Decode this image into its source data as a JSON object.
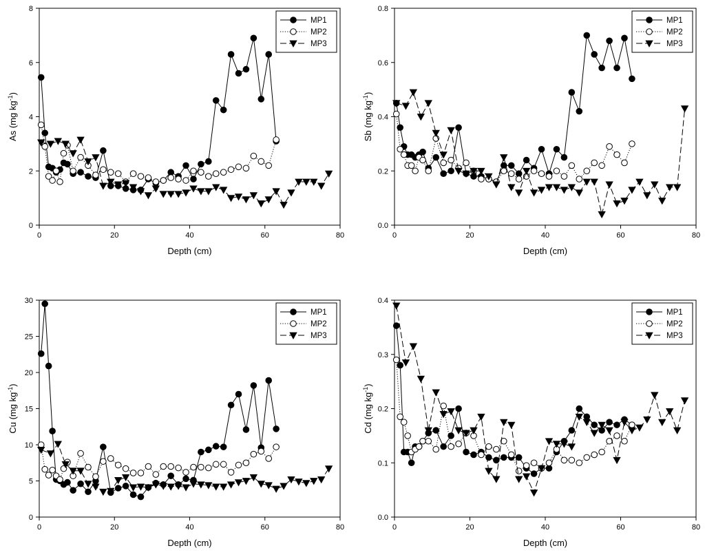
{
  "figure": {
    "background": "#ffffff",
    "series_styles": {
      "MP1": {
        "marker": "filled-circle",
        "line": "solid",
        "color": "#000000"
      },
      "MP2": {
        "marker": "open-circle",
        "line": "dotted",
        "color": "#000000"
      },
      "MP3": {
        "marker": "filled-triangle-down",
        "line": "dashed",
        "color": "#000000"
      }
    }
  },
  "chart_data": [
    {
      "type": "line",
      "id": "as",
      "xlabel": "Depth (cm)",
      "ylabel_main": "As (mg kg",
      "ylabel_sup": "-1",
      "ylabel_close": ")",
      "xlim": [
        0,
        80
      ],
      "ylim": [
        0,
        8
      ],
      "xticks": [
        0,
        20,
        40,
        60,
        80
      ],
      "yticks": [
        0,
        2,
        4,
        6,
        8
      ],
      "legend_position": "top-right",
      "series": [
        {
          "name": "MP1",
          "x": [
            0.5,
            1.5,
            2.5,
            3.5,
            4.5,
            5.5,
            6.5,
            7.5,
            9,
            11,
            13,
            15,
            17,
            19,
            21,
            23,
            25,
            27,
            29,
            31,
            33,
            35,
            37,
            39,
            41,
            43,
            45,
            47,
            49,
            51,
            53,
            55,
            57,
            59,
            61,
            63
          ],
          "y": [
            5.45,
            3.4,
            2.15,
            2.1,
            1.95,
            2.05,
            2.3,
            2.25,
            1.9,
            1.95,
            1.8,
            1.75,
            2.75,
            1.45,
            1.45,
            1.35,
            1.3,
            1.3,
            1.7,
            1.55,
            1.65,
            1.95,
            1.8,
            2.2,
            1.7,
            2.25,
            2.35,
            4.6,
            4.25,
            6.3,
            5.6,
            5.75,
            6.9,
            4.65,
            6.3,
            3.1
          ]
        },
        {
          "name": "MP2",
          "x": [
            0.5,
            1.5,
            2.5,
            3.5,
            4.5,
            5.5,
            6.5,
            7.5,
            9,
            11,
            13,
            15,
            17,
            19,
            21,
            23,
            25,
            27,
            29,
            31,
            33,
            35,
            37,
            39,
            41,
            43,
            45,
            47,
            49,
            51,
            53,
            55,
            57,
            59,
            61,
            63
          ],
          "y": [
            3.7,
            2.9,
            1.8,
            1.65,
            2.0,
            1.6,
            2.65,
            2.95,
            2.0,
            2.5,
            2.2,
            1.85,
            2.05,
            1.95,
            1.9,
            1.6,
            1.9,
            1.8,
            1.75,
            1.6,
            1.65,
            1.75,
            1.7,
            1.65,
            2.0,
            1.95,
            1.8,
            1.9,
            1.95,
            2.05,
            2.15,
            2.1,
            2.55,
            2.35,
            2.2,
            3.15
          ]
        },
        {
          "name": "MP3",
          "x": [
            0.5,
            3,
            5,
            7,
            9,
            11,
            13,
            15,
            17,
            19,
            21,
            23,
            25,
            27,
            29,
            31,
            33,
            35,
            37,
            39,
            41,
            43,
            45,
            47,
            49,
            51,
            53,
            55,
            57,
            59,
            61,
            63,
            65,
            67,
            69,
            71,
            73,
            75,
            77
          ],
          "y": [
            3.05,
            3.0,
            3.1,
            3.0,
            2.65,
            3.15,
            2.35,
            2.5,
            1.45,
            1.6,
            1.5,
            1.55,
            1.4,
            1.25,
            1.1,
            1.35,
            1.15,
            1.15,
            1.15,
            1.2,
            1.35,
            1.25,
            1.25,
            1.4,
            1.3,
            1.0,
            1.05,
            0.95,
            1.1,
            0.8,
            0.95,
            1.25,
            0.75,
            1.2,
            1.6,
            1.6,
            1.6,
            1.45,
            1.9
          ]
        }
      ]
    },
    {
      "type": "line",
      "id": "sb",
      "xlabel": "Depth (cm)",
      "ylabel_main": "Sb (mg kg",
      "ylabel_sup": "-1",
      "ylabel_close": ")",
      "xlim": [
        0,
        80
      ],
      "ylim": [
        0,
        0.8
      ],
      "xticks": [
        0,
        20,
        40,
        60,
        80
      ],
      "yticks": [
        0.0,
        0.2,
        0.4,
        0.6,
        0.8
      ],
      "ytick_decimals": 1,
      "legend_position": "top-right",
      "series": [
        {
          "name": "MP1",
          "x": [
            0.5,
            1.5,
            2.5,
            3.5,
            4.5,
            5.5,
            6.5,
            7.5,
            9,
            11,
            13,
            15,
            17,
            19,
            21,
            23,
            25,
            27,
            29,
            31,
            33,
            35,
            37,
            39,
            41,
            43,
            45,
            47,
            49,
            51,
            53,
            55,
            57,
            59,
            61,
            63
          ],
          "y": [
            0.45,
            0.36,
            0.29,
            0.26,
            0.26,
            0.25,
            0.26,
            0.27,
            0.21,
            0.25,
            0.19,
            0.2,
            0.36,
            0.19,
            0.18,
            0.18,
            0.17,
            0.16,
            0.22,
            0.22,
            0.19,
            0.24,
            0.21,
            0.28,
            0.19,
            0.28,
            0.25,
            0.49,
            0.42,
            0.7,
            0.63,
            0.58,
            0.68,
            0.58,
            0.69,
            0.54
          ]
        },
        {
          "name": "MP2",
          "x": [
            0.5,
            1.5,
            2.5,
            3.5,
            4.5,
            5.5,
            6.5,
            7.5,
            9,
            11,
            13,
            15,
            17,
            19,
            21,
            23,
            25,
            27,
            29,
            31,
            33,
            35,
            37,
            39,
            41,
            43,
            45,
            47,
            49,
            51,
            53,
            55,
            57,
            59,
            61,
            63
          ],
          "y": [
            0.41,
            0.28,
            0.26,
            0.22,
            0.22,
            0.2,
            0.25,
            0.24,
            0.2,
            0.32,
            0.23,
            0.24,
            0.21,
            0.23,
            0.2,
            0.17,
            0.17,
            0.16,
            0.2,
            0.19,
            0.17,
            0.18,
            0.2,
            0.19,
            0.18,
            0.2,
            0.18,
            0.22,
            0.17,
            0.2,
            0.23,
            0.22,
            0.29,
            0.26,
            0.23,
            0.3
          ]
        },
        {
          "name": "MP3",
          "x": [
            0.5,
            3,
            5,
            7,
            9,
            11,
            13,
            15,
            17,
            19,
            21,
            23,
            25,
            27,
            29,
            31,
            33,
            35,
            37,
            39,
            41,
            43,
            45,
            47,
            49,
            51,
            53,
            55,
            57,
            59,
            61,
            63,
            65,
            67,
            69,
            71,
            73,
            75,
            77
          ],
          "y": [
            0.45,
            0.44,
            0.49,
            0.4,
            0.45,
            0.34,
            0.26,
            0.35,
            0.2,
            0.19,
            0.2,
            0.2,
            0.18,
            0.15,
            0.25,
            0.14,
            0.12,
            0.2,
            0.12,
            0.13,
            0.14,
            0.14,
            0.13,
            0.14,
            0.12,
            0.16,
            0.16,
            0.04,
            0.15,
            0.08,
            0.09,
            0.13,
            0.16,
            0.11,
            0.15,
            0.09,
            0.14,
            0.14,
            0.43
          ]
        }
      ]
    },
    {
      "type": "line",
      "id": "cu",
      "xlabel": "Depth (cm)",
      "ylabel_main": "Cu (mg kg",
      "ylabel_sup": "-1",
      "ylabel_close": ")",
      "xlim": [
        0,
        80
      ],
      "ylim": [
        0,
        30
      ],
      "xticks": [
        0,
        20,
        40,
        60,
        80
      ],
      "yticks": [
        0,
        5,
        10,
        15,
        20,
        25,
        30
      ],
      "legend_position": "top-right",
      "series": [
        {
          "name": "MP1",
          "x": [
            0.5,
            1.5,
            2.5,
            3.5,
            4.5,
            5.5,
            6.5,
            7.5,
            9,
            11,
            13,
            15,
            17,
            19,
            21,
            23,
            25,
            27,
            29,
            31,
            33,
            35,
            37,
            39,
            41,
            43,
            45,
            47,
            49,
            51,
            53,
            55,
            57,
            59,
            61,
            63
          ],
          "y": [
            22.6,
            29.5,
            20.9,
            11.9,
            5.2,
            5.0,
            4.5,
            4.8,
            3.7,
            4.6,
            3.5,
            5.0,
            9.7,
            3.4,
            4.0,
            4.3,
            3.1,
            2.8,
            4.1,
            4.7,
            4.5,
            5.7,
            4.5,
            5.3,
            5.1,
            9.0,
            9.3,
            9.8,
            9.7,
            15.5,
            17.0,
            12.1,
            18.2,
            9.6,
            18.9,
            12.2
          ]
        },
        {
          "name": "MP2",
          "x": [
            0.5,
            1.5,
            2.5,
            3.5,
            4.5,
            5.5,
            6.5,
            7.5,
            9,
            11,
            13,
            15,
            17,
            19,
            21,
            23,
            25,
            27,
            29,
            31,
            33,
            35,
            37,
            39,
            41,
            43,
            45,
            47,
            49,
            51,
            53,
            55,
            57,
            59,
            61,
            63
          ],
          "y": [
            10.0,
            6.6,
            5.8,
            6.5,
            5.7,
            5.2,
            6.7,
            7.6,
            5.7,
            8.8,
            6.9,
            5.6,
            7.7,
            8.1,
            7.2,
            6.7,
            6.1,
            6.1,
            7.0,
            5.9,
            7.0,
            7.0,
            6.8,
            6.2,
            6.9,
            6.9,
            6.8,
            7.3,
            7.3,
            6.2,
            7.2,
            7.5,
            8.7,
            9.1,
            8.1,
            9.7
          ]
        },
        {
          "name": "MP3",
          "x": [
            0.5,
            3,
            5,
            7,
            9,
            11,
            13,
            15,
            17,
            19,
            21,
            23,
            25,
            27,
            29,
            31,
            33,
            35,
            37,
            39,
            41,
            43,
            45,
            47,
            49,
            51,
            53,
            55,
            57,
            59,
            61,
            63,
            65,
            67,
            69,
            71,
            73,
            75,
            77
          ],
          "y": [
            9.3,
            8.8,
            10.1,
            7.3,
            6.4,
            6.4,
            4.6,
            4.2,
            3.5,
            3.6,
            5.1,
            5.5,
            4.1,
            4.2,
            4.1,
            4.5,
            4.3,
            4.2,
            4.3,
            4.1,
            4.6,
            4.5,
            4.4,
            4.2,
            4.2,
            4.5,
            4.8,
            5.0,
            5.5,
            4.6,
            4.4,
            3.9,
            4.3,
            5.2,
            4.9,
            4.7,
            5.0,
            5.2,
            6.7
          ]
        }
      ]
    },
    {
      "type": "line",
      "id": "cd",
      "xlabel": "Depth (cm)",
      "ylabel_main": "Cd (mg kg",
      "ylabel_sup": "-1",
      "ylabel_close": ")",
      "xlim": [
        0,
        80
      ],
      "ylim": [
        0,
        0.4
      ],
      "xticks": [
        0,
        20,
        40,
        60,
        80
      ],
      "yticks": [
        0.0,
        0.1,
        0.2,
        0.3,
        0.4
      ],
      "ytick_decimals": 1,
      "legend_position": "top-right",
      "series": [
        {
          "name": "MP1",
          "x": [
            0.5,
            1.5,
            2.5,
            3.5,
            4.5,
            5.5,
            6.5,
            7.5,
            9,
            11,
            13,
            15,
            17,
            19,
            21,
            23,
            25,
            27,
            29,
            31,
            33,
            35,
            37,
            39,
            41,
            43,
            45,
            47,
            49,
            51,
            53,
            55,
            57,
            59,
            61,
            63
          ],
          "y": [
            0.353,
            0.28,
            0.12,
            0.12,
            0.1,
            0.13,
            0.13,
            0.14,
            0.155,
            0.16,
            0.13,
            0.15,
            0.2,
            0.12,
            0.115,
            0.12,
            0.11,
            0.105,
            0.11,
            0.11,
            0.11,
            0.09,
            0.08,
            0.09,
            0.09,
            0.12,
            0.14,
            0.16,
            0.2,
            0.185,
            0.17,
            0.16,
            0.175,
            0.17,
            0.18,
            0.17
          ]
        },
        {
          "name": "MP2",
          "x": [
            0.5,
            1.5,
            2.5,
            3.5,
            4.5,
            5.5,
            6.5,
            7.5,
            9,
            11,
            13,
            15,
            17,
            19,
            21,
            23,
            25,
            27,
            29,
            31,
            33,
            35,
            37,
            39,
            41,
            43,
            45,
            47,
            49,
            51,
            53,
            55,
            57,
            59,
            61,
            63
          ],
          "y": [
            0.29,
            0.185,
            0.175,
            0.15,
            0.12,
            0.125,
            0.13,
            0.14,
            0.14,
            0.125,
            0.205,
            0.13,
            0.135,
            0.155,
            0.15,
            0.115,
            0.13,
            0.125,
            0.14,
            0.115,
            0.085,
            0.095,
            0.1,
            0.09,
            0.1,
            0.125,
            0.105,
            0.105,
            0.1,
            0.11,
            0.115,
            0.12,
            0.14,
            0.15,
            0.14,
            0.17
          ]
        },
        {
          "name": "MP3",
          "x": [
            0.5,
            3,
            5,
            7,
            9,
            11,
            13,
            15,
            17,
            19,
            21,
            23,
            25,
            27,
            29,
            31,
            33,
            35,
            37,
            39,
            41,
            43,
            45,
            47,
            49,
            51,
            53,
            55,
            57,
            59,
            61,
            63,
            65,
            67,
            69,
            71,
            73,
            75,
            77
          ],
          "y": [
            0.39,
            0.285,
            0.315,
            0.255,
            0.16,
            0.23,
            0.19,
            0.195,
            0.16,
            0.155,
            0.16,
            0.185,
            0.085,
            0.07,
            0.175,
            0.17,
            0.07,
            0.075,
            0.045,
            0.09,
            0.14,
            0.135,
            0.135,
            0.13,
            0.185,
            0.175,
            0.155,
            0.17,
            0.16,
            0.105,
            0.175,
            0.16,
            0.165,
            0.18,
            0.225,
            0.175,
            0.195,
            0.16,
            0.215
          ]
        }
      ]
    }
  ]
}
